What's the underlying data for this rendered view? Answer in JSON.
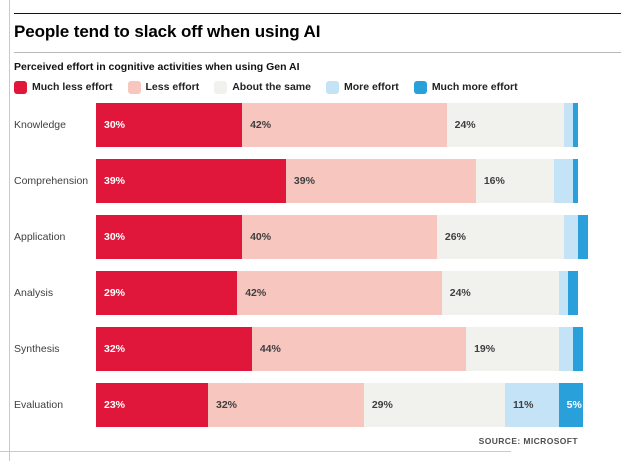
{
  "header": {
    "title": "People tend to slack off when using AI",
    "subtitle": "Perceived effort in cognitive activities when using Gen AI"
  },
  "legend": [
    {
      "label": "Much less effort",
      "color": "#e0173a"
    },
    {
      "label": "Less effort",
      "color": "#f6c6bf"
    },
    {
      "label": "About the same",
      "color": "#f1f1ee"
    },
    {
      "label": "More effort",
      "color": "#c5e3f6"
    },
    {
      "label": "Much more effort",
      "color": "#29a0da"
    }
  ],
  "footer": {
    "source": "SOURCE: MICROSOFT"
  },
  "chart_data": {
    "type": "bar",
    "orientation": "horizontal",
    "stacked": true,
    "value_unit": "%",
    "axis_range": [
      0,
      100
    ],
    "grid": false,
    "legend_position": "top",
    "label_threshold_pct": 5,
    "categories": [
      "Knowledge",
      "Comprehension",
      "Application",
      "Analysis",
      "Synthesis",
      "Evaluation"
    ],
    "series": [
      {
        "name": "Much less effort",
        "slug": "much-less-effort",
        "color": "#e0173a",
        "label_color": "#ffffff",
        "values": [
          30,
          39,
          30,
          29,
          32,
          23
        ]
      },
      {
        "name": "Less effort",
        "slug": "less-effort",
        "color": "#f6c6bf",
        "label_color": "#3f3f3f",
        "values": [
          42,
          39,
          40,
          42,
          44,
          32
        ]
      },
      {
        "name": "About the same",
        "slug": "about-the-same",
        "color": "#f1f1ee",
        "label_color": "#3f3f3f",
        "values": [
          24,
          16,
          26,
          24,
          19,
          29
        ]
      },
      {
        "name": "More effort",
        "slug": "more-effort",
        "color": "#c5e3f6",
        "label_color": "#3f3f3f",
        "values": [
          2,
          4,
          3,
          2,
          3,
          11
        ]
      },
      {
        "name": "Much more effort",
        "slug": "much-more-effort",
        "color": "#29a0da",
        "label_color": "#ffffff",
        "values": [
          1,
          1,
          2,
          2,
          2,
          5
        ]
      }
    ]
  }
}
